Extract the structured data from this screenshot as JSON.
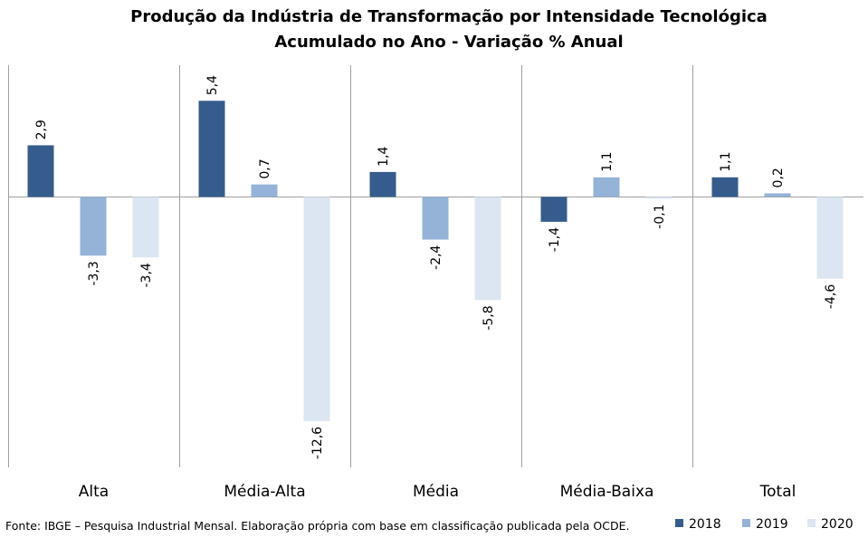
{
  "chart_data": {
    "type": "bar",
    "title": "Produção da Indústria de Transformação por Intensidade Tecnológica",
    "subtitle": "Acumulado no Ano - Variação % Anual",
    "categories": [
      "Alta",
      "Média-Alta",
      "Média",
      "Média-Baixa",
      "Total"
    ],
    "series": [
      {
        "name": "2018",
        "color": "#355c8c",
        "values": [
          2.9,
          5.4,
          1.4,
          -1.4,
          1.1
        ],
        "labels": [
          "2,9",
          "5,4",
          "1,4",
          "-1,4",
          "1,1"
        ]
      },
      {
        "name": "2019",
        "color": "#95b3d7",
        "values": [
          -3.3,
          0.7,
          -2.4,
          1.1,
          0.2
        ],
        "labels": [
          "-3,3",
          "0,7",
          "-2,4",
          "1,1",
          "0,2"
        ]
      },
      {
        "name": "2020",
        "color": "#dce6f2",
        "values": [
          -3.4,
          -12.6,
          -5.8,
          -0.1,
          -4.6
        ],
        "labels": [
          "-3,4",
          "-12,6",
          "-5,8",
          "-0,1",
          "-4,6"
        ]
      }
    ],
    "ylim": [
      -15.2,
      7.4
    ],
    "grid": false,
    "legend_position": "bottom-right",
    "source": "Fonte: IBGE – Pesquisa Industrial Mensal. Elaboração própria  com base em classificação publicada pela OCDE."
  }
}
